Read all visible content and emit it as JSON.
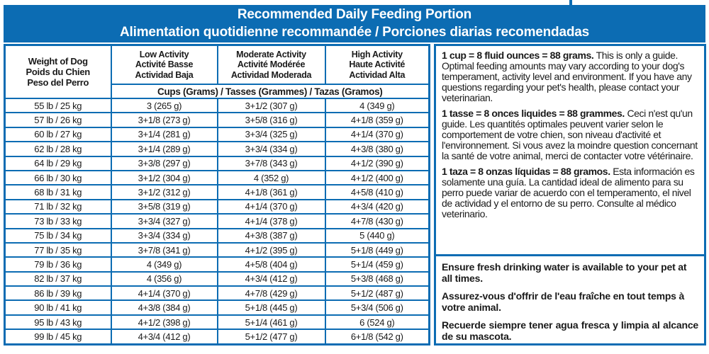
{
  "header": {
    "title_line1": "Recommended Daily Feeding Portion",
    "title_line2": "Alimentation quotidienne recommandée / Porciones diarias recomendadas"
  },
  "table": {
    "weight_header_lines": [
      "Weight of Dog",
      "Poids du Chien",
      "Peso del Perro"
    ],
    "activity_columns": [
      {
        "en": "Low Activity",
        "fr": "Activité Basse",
        "es": "Actividad Baja"
      },
      {
        "en": "Moderate Activity",
        "fr": "Activité Modérée",
        "es": "Actividad Moderada"
      },
      {
        "en": "High Activity",
        "fr": "Haute Activité",
        "es": "Actividad Alta"
      }
    ],
    "units_row": "Cups (Grams) / Tasses (Grammes) / Tazas (Gramos)",
    "rows": [
      {
        "weight": "55 lb / 25 kg",
        "low": "3 (265 g)",
        "moderate": "3+1/2 (307 g)",
        "high": "4 (349 g)"
      },
      {
        "weight": "57 lb / 26 kg",
        "low": "3+1/8 (273 g)",
        "moderate": "3+5/8 (316 g)",
        "high": "4+1/8 (359 g)"
      },
      {
        "weight": "60 lb / 27 kg",
        "low": "3+1/4 (281 g)",
        "moderate": "3+3/4 (325 g)",
        "high": "4+1/4 (370 g)"
      },
      {
        "weight": "62 lb / 28 kg",
        "low": "3+1/4 (289 g)",
        "moderate": "3+3/4 (334 g)",
        "high": "4+3/8 (380 g)"
      },
      {
        "weight": "64 lb / 29 kg",
        "low": "3+3/8 (297 g)",
        "moderate": "3+7/8 (343 g)",
        "high": "4+1/2 (390 g)"
      },
      {
        "weight": "66 lb / 30 kg",
        "low": "3+1/2 (304 g)",
        "moderate": "4 (352 g)",
        "high": "4+1/2 (400 g)"
      },
      {
        "weight": "68 lb / 31 kg",
        "low": "3+1/2 (312 g)",
        "moderate": "4+1/8 (361 g)",
        "high": "4+5/8 (410 g)"
      },
      {
        "weight": "71 lb / 32 kg",
        "low": "3+5/8 (319 g)",
        "moderate": "4+1/4 (370 g)",
        "high": "4+3/4 (420 g)"
      },
      {
        "weight": "73 lb / 33 kg",
        "low": "3+3/4 (327 g)",
        "moderate": "4+1/4 (378 g)",
        "high": "4+7/8 (430 g)"
      },
      {
        "weight": "75 lb / 34 kg",
        "low": "3+3/4 (334 g)",
        "moderate": "4+3/8 (387 g)",
        "high": "5 (440 g)"
      },
      {
        "weight": "77 lb / 35 kg",
        "low": "3+7/8 (341 g)",
        "moderate": "4+1/2 (395 g)",
        "high": "5+1/8 (449 g)"
      },
      {
        "weight": "79 lb / 36 kg",
        "low": "4 (349 g)",
        "moderate": "4+5/8 (404 g)",
        "high": "5+1/4 (459 g)"
      },
      {
        "weight": "82 lb / 37 kg",
        "low": "4 (356 g)",
        "moderate": "4+3/4 (412 g)",
        "high": "5+3/8 (468 g)"
      },
      {
        "weight": "86 lb / 39 kg",
        "low": "4+1/4 (370 g)",
        "moderate": "4+7/8 (429 g)",
        "high": "5+1/2 (487 g)"
      },
      {
        "weight": "90 lb / 41 kg",
        "low": "4+3/8 (384 g)",
        "moderate": "5+1/8 (445 g)",
        "high": "5+3/4 (506 g)"
      },
      {
        "weight": "95 lb / 43 kg",
        "low": "4+1/2 (398 g)",
        "moderate": "5+1/4 (461 g)",
        "high": "6 (524 g)"
      },
      {
        "weight": "99 lb / 45 kg",
        "low": "4+3/4 (412 g)",
        "moderate": "5+1/2 (477 g)",
        "high": "6+1/8 (542 g)"
      }
    ]
  },
  "notes": [
    {
      "lead": "1 cup = 8 fluid ounces = 88 grams.",
      "body": "This is only a guide. Optimal feeding amounts may vary according to your dog's temperament, activity level and environment. If you have any questions regarding your pet's health, please contact your veterinarian."
    },
    {
      "lead": "1 tasse = 8 onces liquides = 88 grammes.",
      "body": "Ceci n'est qu'un guide. Les quantités optimales peuvent varier selon le comportement de votre chien, son niveau d'activité et l'environnement. Si vous avez la moindre question concernant la santé de votre animal, merci de contacter votre vétérinaire."
    },
    {
      "lead": "1 taza = 8 onzas líquidas = 88 gramos.",
      "body": "Esta información es solamente una guía. La cantidad ideal de alimento para su perro puede variar de acuerdo con el temperamento, el nivel de actividad y el entorno de su perro. Consulte al médico veterinario."
    }
  ],
  "water_notes": [
    "Ensure fresh drinking water is available to your pet at all times.",
    "Assurez-vous d'offrir de l'eau fraîche en tout temps à votre animal.",
    "Recuerde siempre tener agua fresca y limpia al alcance de su mascota."
  ],
  "colors": {
    "blue": "#0c6cb3",
    "text": "#1a1a1a",
    "title_text": "#ffffff"
  }
}
